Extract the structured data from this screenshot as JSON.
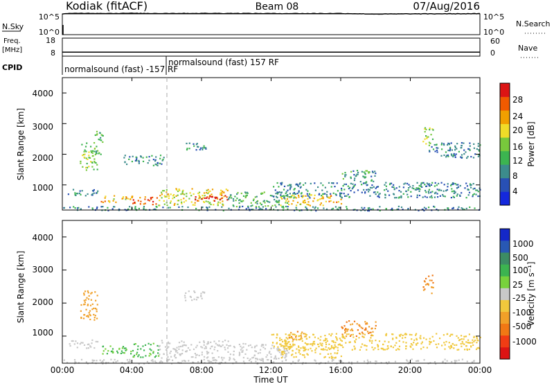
{
  "header": {
    "station": "Kodiak (fitACF)",
    "beam": "Beam 08",
    "date": "07/Aug/2016"
  },
  "panels": {
    "nsky": {
      "label": "N.Sky",
      "right_label": "N.Search",
      "ticks_left": [
        "10^5",
        "10^0"
      ],
      "ticks_right": [
        "10^5",
        "10^0"
      ]
    },
    "freq": {
      "label_line1": "Freq.",
      "label_line2": "[MHz]",
      "right_label": "Nave",
      "ticks_left": [
        "18",
        "8"
      ],
      "ticks_right": [
        "60",
        "0"
      ]
    },
    "cpid": {
      "label": "CPID",
      "programs": [
        "normalsound (fast) -157 RF",
        "normalsound (fast) 157 RF"
      ]
    }
  },
  "axes": {
    "xlabel": "Time UT",
    "xticks": [
      "00:00",
      "04:00",
      "08:00",
      "12:00",
      "16:00",
      "20:00",
      "00:00"
    ],
    "ylabel": "Slant Range [km]",
    "yticks": [
      "4000",
      "3000",
      "2000",
      "1000"
    ]
  },
  "colorbars": {
    "power": {
      "label": "Power [dB]",
      "ticks": [
        "28",
        "24",
        "20",
        "16",
        "12",
        "8",
        "4"
      ],
      "colors": [
        "#1428dc",
        "#2850b4",
        "#3c8c8c",
        "#3cb450",
        "#78c83c",
        "#f0dc28",
        "#f0a000",
        "#f05a00",
        "#dc1414"
      ]
    },
    "velocity": {
      "label": "Velocity [m s⁻¹]",
      "ticks": [
        "1000",
        "500",
        "100",
        "25",
        "-25",
        "-100",
        "-500",
        "-1000"
      ],
      "colors": [
        "#1428c8",
        "#2858b4",
        "#3c8c64",
        "#3cb450",
        "#78d23c",
        "#c8c8c8",
        "#f0c83c",
        "#f0a028",
        "#f07814",
        "#f03c14",
        "#dc1414"
      ]
    }
  },
  "chart_data": [
    {
      "type": "line",
      "title": "N.Sky / N.Search",
      "x": [
        0,
        1,
        2,
        3,
        4,
        5,
        6,
        8,
        10,
        12,
        14,
        16,
        18,
        20,
        22,
        24
      ],
      "series": [
        {
          "values": [
            100000.0,
            140000.0,
            130000.0,
            130000.0,
            135000.0,
            125000.0,
            130000.0,
            130000.0,
            130000.0,
            120000.0,
            120000.0,
            125000.0,
            90000.0,
            100000.0,
            105000.0,
            110000.0
          ]
        }
      ],
      "xlim": [
        0,
        24
      ],
      "ylim_log10": [
        0,
        5
      ]
    },
    {
      "type": "line",
      "title": "Freq / Nave",
      "x": [
        0,
        4,
        8,
        12,
        16,
        20,
        24
      ],
      "series": [
        {
          "values": [
            10.2,
            10.2,
            10.2,
            10.2,
            10.2,
            10.2,
            10.2
          ]
        }
      ],
      "xlim": [
        0,
        24
      ],
      "ylim": [
        8,
        18
      ]
    },
    {
      "type": "heatmap",
      "title": "Power",
      "xlim": [
        0,
        24
      ],
      "ylim": [
        180,
        4500
      ],
      "clim": [
        0,
        30
      ],
      "features": [
        {
          "t0": 0.3,
          "t1": 2.0,
          "r0": 650,
          "r1": 900,
          "value": 8
        },
        {
          "t0": 1.0,
          "t1": 2.0,
          "r0": 1500,
          "r1": 2400,
          "value": 14
        },
        {
          "t0": 1.8,
          "t1": 2.3,
          "r0": 2000,
          "r1": 2800,
          "value": 12
        },
        {
          "t0": 2.2,
          "t1": 4.0,
          "r0": 450,
          "r1": 700,
          "value": 20
        },
        {
          "t0": 4.0,
          "t1": 5.5,
          "r0": 380,
          "r1": 650,
          "value": 26
        },
        {
          "t0": 3.5,
          "t1": 5.8,
          "r0": 1650,
          "r1": 2000,
          "value": 9
        },
        {
          "t0": 5.5,
          "t1": 9.5,
          "r0": 350,
          "r1": 900,
          "value": 18
        },
        {
          "t0": 7.5,
          "t1": 9.5,
          "r0": 500,
          "r1": 700,
          "value": 28
        },
        {
          "t0": 7.0,
          "t1": 8.3,
          "r0": 2100,
          "r1": 2400,
          "value": 9
        },
        {
          "t0": 9.5,
          "t1": 13.0,
          "r0": 300,
          "r1": 800,
          "value": 12
        },
        {
          "t0": 12.5,
          "t1": 16.0,
          "r0": 350,
          "r1": 700,
          "value": 20
        },
        {
          "t0": 12.0,
          "t1": 24.0,
          "r0": 600,
          "r1": 1100,
          "value": 8
        },
        {
          "t0": 16.0,
          "t1": 18.0,
          "r0": 1100,
          "r1": 1500,
          "value": 10
        },
        {
          "t0": 20.7,
          "t1": 21.3,
          "r0": 2300,
          "r1": 2900,
          "value": 16
        },
        {
          "t0": 21.0,
          "t1": 24.0,
          "r0": 1900,
          "r1": 2400,
          "value": 8
        },
        {
          "t0": 0.0,
          "t1": 24.0,
          "r0": 180,
          "r1": 320,
          "value": 8
        }
      ]
    },
    {
      "type": "heatmap",
      "title": "Velocity",
      "xlim": [
        0,
        24
      ],
      "ylim": [
        180,
        4500
      ],
      "clim": [
        -1000,
        1000
      ],
      "features": [
        {
          "t0": 0.3,
          "t1": 2.0,
          "r0": 650,
          "r1": 900,
          "value": 0
        },
        {
          "t0": 1.0,
          "t1": 2.0,
          "r0": 1500,
          "r1": 2400,
          "value": -150
        },
        {
          "t0": 2.2,
          "t1": 4.0,
          "r0": 450,
          "r1": 750,
          "value": 60
        },
        {
          "t0": 4.0,
          "t1": 5.5,
          "r0": 380,
          "r1": 800,
          "value": 60
        },
        {
          "t0": 5.5,
          "t1": 9.5,
          "r0": 350,
          "r1": 900,
          "value": 0
        },
        {
          "t0": 7.0,
          "t1": 8.3,
          "r0": 2100,
          "r1": 2400,
          "value": 0
        },
        {
          "t0": 9.5,
          "t1": 13.0,
          "r0": 300,
          "r1": 800,
          "value": 0
        },
        {
          "t0": 12.5,
          "t1": 16.0,
          "r0": 350,
          "r1": 800,
          "value": -60
        },
        {
          "t0": 13.0,
          "t1": 14.0,
          "r0": 900,
          "r1": 1200,
          "value": -300
        },
        {
          "t0": 16.0,
          "t1": 18.0,
          "r0": 1000,
          "r1": 1500,
          "value": -300
        },
        {
          "t0": 20.7,
          "t1": 21.3,
          "r0": 2300,
          "r1": 2900,
          "value": -300
        },
        {
          "t0": 12.0,
          "t1": 24.0,
          "r0": 600,
          "r1": 1100,
          "value": -60
        },
        {
          "t0": 0.0,
          "t1": 24.0,
          "r0": 180,
          "r1": 320,
          "value": 0
        }
      ]
    }
  ]
}
